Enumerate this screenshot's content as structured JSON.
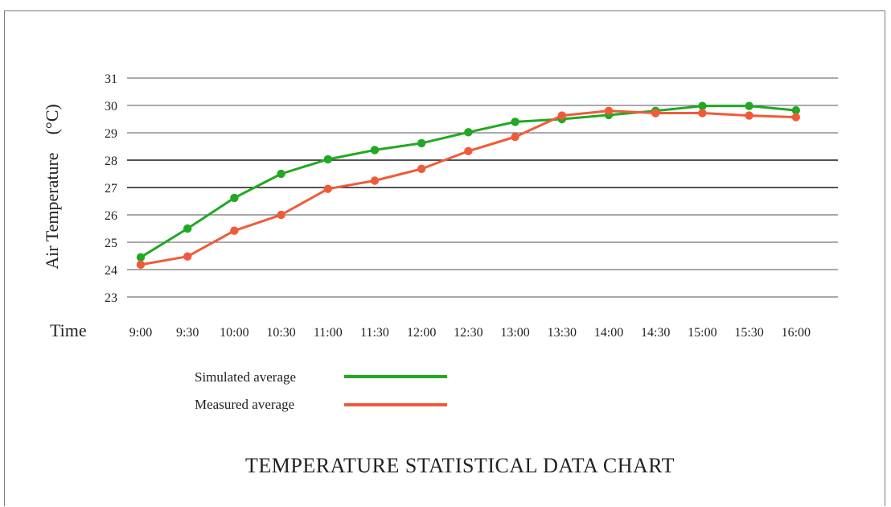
{
  "chart_data": {
    "type": "line",
    "title": "TEMPERATURE STATISTICAL DATA CHART",
    "xlabel": "Time",
    "ylabel": "Air Temperature　(°C)",
    "ylim": [
      23,
      31
    ],
    "yticks": [
      23,
      24,
      25,
      26,
      27,
      28,
      29,
      30,
      31
    ],
    "categories": [
      "9:00",
      "9:30",
      "10:00",
      "10:30",
      "11:00",
      "11:30",
      "12:00",
      "12:30",
      "13:00",
      "13:30",
      "14:00",
      "14:30",
      "15:00",
      "15:30",
      "16:00"
    ],
    "grid": "horizontal",
    "legend_position": "bottom-left",
    "series": [
      {
        "name": "Simulated average",
        "color": "#22a822",
        "values": [
          24.45,
          25.5,
          26.62,
          27.5,
          28.03,
          28.37,
          28.62,
          29.02,
          29.4,
          29.5,
          29.65,
          29.8,
          29.98,
          29.98,
          29.82
        ]
      },
      {
        "name": "Measured average",
        "color": "#ef5b3a",
        "values": [
          24.18,
          24.48,
          25.42,
          26.0,
          26.95,
          27.25,
          27.68,
          28.33,
          28.85,
          29.63,
          29.8,
          29.72,
          29.72,
          29.63,
          29.57
        ]
      }
    ]
  }
}
